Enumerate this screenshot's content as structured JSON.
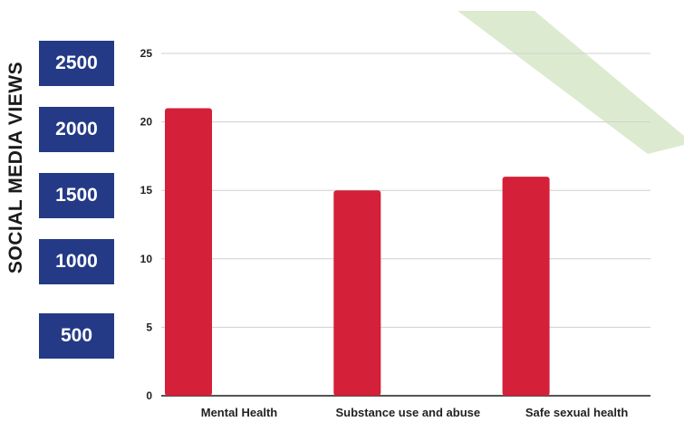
{
  "side_label": "SOCIAL MEDIA VIEWS",
  "view_boxes": [
    "2500",
    "2000",
    "1500",
    "1000",
    "500"
  ],
  "colors": {
    "bar": "#d42038",
    "box": "#243a86",
    "grid": "#d0d0d0",
    "accent": "#d6e8c8"
  },
  "chart_data": {
    "type": "bar",
    "categories": [
      "Mental Health",
      "Substance use and abuse",
      "Safe sexual health"
    ],
    "values": [
      21,
      15,
      16
    ],
    "yticks": [
      0,
      5,
      10,
      15,
      20,
      25
    ],
    "ylim": [
      0,
      25
    ],
    "title": "",
    "xlabel": "",
    "ylabel": "",
    "grid": true
  }
}
